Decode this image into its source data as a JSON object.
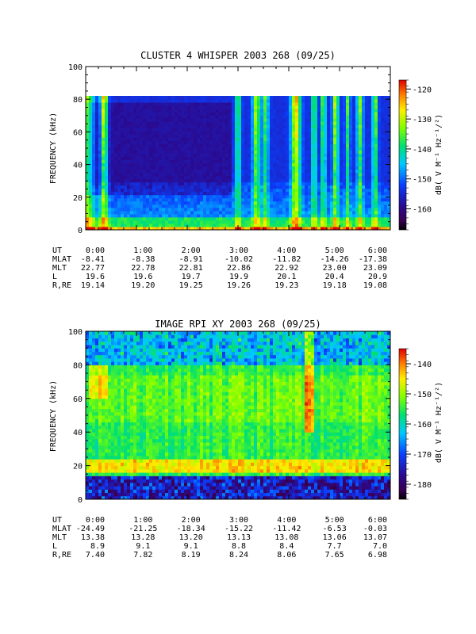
{
  "chart_data": [
    {
      "type": "heatmap",
      "title": "CLUSTER 4 WHISPER 2003 268 (09/25)",
      "ylabel": "FREQUENCY (kHz)",
      "ylim": [
        0,
        100
      ],
      "yticks": [
        "0",
        "20",
        "40",
        "60",
        "80",
        "100"
      ],
      "xticks": [
        "0:00",
        "1:00",
        "2:00",
        "3:00",
        "4:00",
        "5:00",
        "6:00"
      ],
      "colorbar": {
        "label": "dB( V M⁻¹ Hz⁻¹/²)",
        "range": [
          -167,
          -117
        ],
        "ticks": [
          "-120",
          "-130",
          "-140",
          "-150",
          "-160"
        ]
      },
      "ephemeris": [
        {
          "label": "UT",
          "values": [
            "0:00",
            "1:00",
            "2:00",
            "3:00",
            "4:00",
            "5:00",
            "6:00"
          ]
        },
        {
          "label": "MLAT",
          "values": [
            "-8.41",
            "-8.38",
            "-8.91",
            "-10.02",
            "-11.82",
            "-14.26",
            "-17.38"
          ]
        },
        {
          "label": "MLT",
          "values": [
            "22.77",
            "22.78",
            "22.81",
            "22.86",
            "22.92",
            "23.00",
            "23.09"
          ]
        },
        {
          "label": "L",
          "values": [
            "19.6",
            "19.6",
            "19.7",
            "19.9",
            "20.1",
            "20.4",
            "20.9"
          ]
        },
        {
          "label": "R,RE",
          "values": [
            "19.14",
            "19.20",
            "19.25",
            "19.26",
            "19.23",
            "19.18",
            "19.08"
          ]
        }
      ]
    },
    {
      "type": "heatmap",
      "title": "IMAGE RPI XY 2003 268 (09/25)",
      "ylabel": "FREQUENCY (kHz)",
      "ylim": [
        0,
        100
      ],
      "yticks": [
        "0",
        "20",
        "40",
        "60",
        "80",
        "100"
      ],
      "xticks": [
        "0:00",
        "1:00",
        "2:00",
        "3:00",
        "4:00",
        "5:00",
        "6:00"
      ],
      "colorbar": {
        "label": "dB( V M⁻¹ Hz⁻¹/²)",
        "range": [
          -185,
          -135
        ],
        "ticks": [
          "-140",
          "-150",
          "-160",
          "-170",
          "-180"
        ]
      },
      "ephemeris": [
        {
          "label": "UT",
          "values": [
            "0:00",
            "1:00",
            "2:00",
            "3:00",
            "4:00",
            "5:00",
            "6:00"
          ]
        },
        {
          "label": "MLAT",
          "values": [
            "-24.49",
            "-21.25",
            "-18.34",
            "-15.22",
            "-11.42",
            "-6.53",
            "-0.03"
          ]
        },
        {
          "label": "MLT",
          "values": [
            "13.38",
            "13.28",
            "13.20",
            "13.13",
            "13.08",
            "13.06",
            "13.07"
          ]
        },
        {
          "label": "L",
          "values": [
            "8.9",
            "9.1",
            "9.1",
            "8.8",
            "8.4",
            "7.7",
            "7.0"
          ]
        },
        {
          "label": "R,RE",
          "values": [
            "7.40",
            "7.82",
            "8.19",
            "8.24",
            "8.06",
            "7.65",
            "6.98"
          ]
        }
      ]
    }
  ]
}
